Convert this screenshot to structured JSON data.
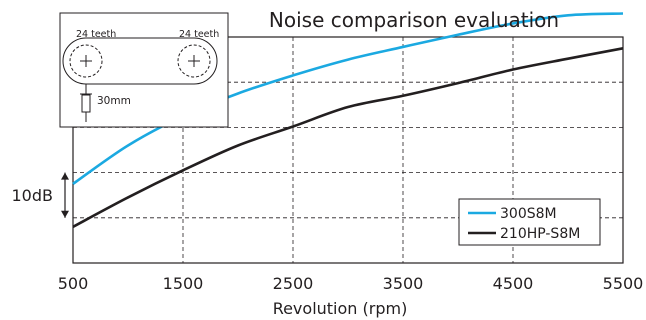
{
  "chart_data": {
    "type": "line",
    "title": "Noise comparison evaluation",
    "xlabel": "Revolution (rpm)",
    "ylabel": "",
    "x_ticks": [
      500,
      1500,
      2500,
      3500,
      4500,
      5500
    ],
    "x_tick_labels": [
      "500",
      "1500",
      "2500",
      "3500",
      "4500",
      "5500"
    ],
    "xlim": [
      500,
      5500
    ],
    "ylim": [
      0,
      50
    ],
    "y_unit": "dB (relative)",
    "y_ticks": [
      0,
      10,
      20,
      30,
      40,
      50
    ],
    "grid": true,
    "scale_marker": {
      "label": "10dB",
      "from": 10,
      "to": 20
    },
    "legend_position": "bottom-right",
    "series": [
      {
        "name": "300S8M",
        "color": "#1ba9e1",
        "x": [
          500,
          1000,
          1500,
          2000,
          2500,
          3000,
          3500,
          4000,
          4500,
          5000,
          5500
        ],
        "values": [
          17.5,
          26,
          32.5,
          37.5,
          41.5,
          45,
          47.8,
          50.5,
          53,
          54.8,
          55.2
        ]
      },
      {
        "name": "210HP-S8M",
        "color": "#231f20",
        "x": [
          500,
          1000,
          1500,
          2000,
          2500,
          3000,
          3500,
          4000,
          4500,
          5000,
          5500
        ],
        "values": [
          8,
          14.5,
          20.5,
          26,
          30.2,
          34.5,
          37,
          39.8,
          42.8,
          45.2,
          47.5
        ]
      }
    ]
  },
  "inset": {
    "left_pulley_label": "24 teeth",
    "right_pulley_label": "24 teeth",
    "mic_distance_label": "30mm"
  }
}
